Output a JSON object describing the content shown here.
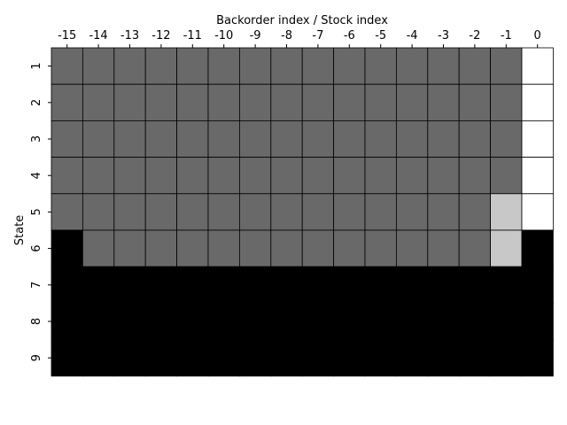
{
  "chart_data": {
    "type": "heatmap",
    "title": "",
    "xlabel": "Backorder index / Stock index",
    "ylabel": "State",
    "x_axis_position": "top",
    "x_categories": [
      "-15",
      "-14",
      "-13",
      "-12",
      "-11",
      "-10",
      "-9",
      "-8",
      "-7",
      "-6",
      "-5",
      "-4",
      "-3",
      "-2",
      "-1",
      "0"
    ],
    "y_categories": [
      "1",
      "2",
      "3",
      "4",
      "5",
      "6",
      "7",
      "8",
      "9"
    ],
    "legend": "none",
    "grid": false,
    "colormap": {
      "0": "#000000",
      "1": "#696969",
      "2": "#c8c8c8",
      "3": "#ffffff"
    },
    "values": [
      [
        1,
        1,
        1,
        1,
        1,
        1,
        1,
        1,
        1,
        1,
        1,
        1,
        1,
        1,
        1,
        3
      ],
      [
        1,
        1,
        1,
        1,
        1,
        1,
        1,
        1,
        1,
        1,
        1,
        1,
        1,
        1,
        1,
        3
      ],
      [
        1,
        1,
        1,
        1,
        1,
        1,
        1,
        1,
        1,
        1,
        1,
        1,
        1,
        1,
        1,
        3
      ],
      [
        1,
        1,
        1,
        1,
        1,
        1,
        1,
        1,
        1,
        1,
        1,
        1,
        1,
        1,
        1,
        3
      ],
      [
        1,
        1,
        1,
        1,
        1,
        1,
        1,
        1,
        1,
        1,
        1,
        1,
        1,
        1,
        2,
        3
      ],
      [
        0,
        1,
        1,
        1,
        1,
        1,
        1,
        1,
        1,
        1,
        1,
        1,
        1,
        1,
        2,
        0
      ],
      [
        0,
        0,
        0,
        0,
        0,
        0,
        0,
        0,
        0,
        0,
        0,
        0,
        0,
        0,
        0,
        0
      ],
      [
        0,
        0,
        0,
        0,
        0,
        0,
        0,
        0,
        0,
        0,
        0,
        0,
        0,
        0,
        0,
        0
      ],
      [
        0,
        0,
        0,
        0,
        0,
        0,
        0,
        0,
        0,
        0,
        0,
        0,
        0,
        0,
        0,
        0
      ]
    ]
  }
}
